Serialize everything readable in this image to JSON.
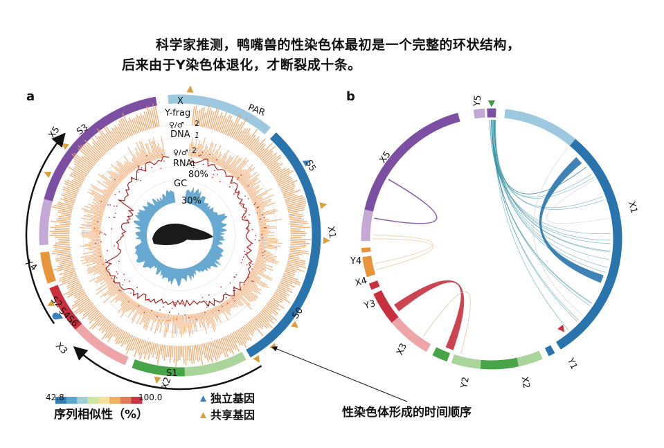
{
  "caption": {
    "line1": "科学家推测，鸭嘴兽的性染色体最初是一个完整的环状结构，",
    "line2": "后来由于Y染色体退化，才断裂成十条。"
  },
  "panel_a": {
    "letter": "a",
    "segments": [
      {
        "name": "X",
        "label": "X"
      },
      {
        "name": "PAR",
        "label": "PAR"
      },
      {
        "name": "S5",
        "label": "S5"
      },
      {
        "name": "X1",
        "label": "X1"
      },
      {
        "name": "S0",
        "label": "S0"
      },
      {
        "name": "S1",
        "label": "S1"
      },
      {
        "name": "X2",
        "label": "X2"
      },
      {
        "name": "X3",
        "label": "X3"
      },
      {
        "name": "S2",
        "label": "S2"
      },
      {
        "name": "S4S6",
        "label": "S4S6"
      },
      {
        "name": "X4",
        "label": "X4"
      },
      {
        "name": "S3",
        "label": "S3"
      },
      {
        "name": "X5",
        "label": "X5"
      }
    ],
    "track_labels": {
      "y_frag": "Y-frag",
      "dna_sex": "♀/♂",
      "dna": "DNA",
      "dna_scale_2": "2",
      "dna_scale_1": "1",
      "rna_sex": "♀/♂",
      "rna": "RNA",
      "rna_scale_2": "2",
      "rna_scale_1": "1",
      "pct80": "80%",
      "gc": "GC",
      "pct30": "30%"
    }
  },
  "panel_b": {
    "letter": "b",
    "segments": [
      {
        "name": "Y5",
        "label": "Y5"
      },
      {
        "name": "X5",
        "label": "X5"
      },
      {
        "name": "X1",
        "label": "X1"
      },
      {
        "name": "Y4",
        "label": "Y4"
      },
      {
        "name": "X4",
        "label": "X4"
      },
      {
        "name": "Y3",
        "label": "Y3"
      },
      {
        "name": "X3",
        "label": "X3"
      },
      {
        "name": "Y2",
        "label": "Y2"
      },
      {
        "name": "X2",
        "label": "X2"
      },
      {
        "name": "Y1",
        "label": "Y1"
      }
    ]
  },
  "legend": {
    "min": "42.8",
    "max": "100.0",
    "title": "序列相似性（%）",
    "colors": [
      "#2e7db5",
      "#5aa7c9",
      "#9fd0d8",
      "#cfe6a0",
      "#f3e39a",
      "#f0b25e",
      "#e47a5a",
      "#c93545"
    ],
    "independent_gene": "独立基因",
    "shared_gene": "共享基因",
    "independent_color": "#3a7fc0",
    "shared_color": "#d9a03a"
  },
  "annotation": {
    "arrow_label": "性染色体形成的时间顺序"
  },
  "colors": {
    "purple": "#7d4fa3",
    "light_purple": "#c4a8d6",
    "light_blue": "#9cc8e0",
    "blue": "#2a74ad",
    "green": "#47a447",
    "light_green": "#a9d49a",
    "red": "#c8303e",
    "pink": "#eea5a7",
    "orange": "#e8943a",
    "orange_track": "#f2a05f",
    "dark_red_line": "#a82424",
    "gc_blue": "#4d9ac9"
  }
}
